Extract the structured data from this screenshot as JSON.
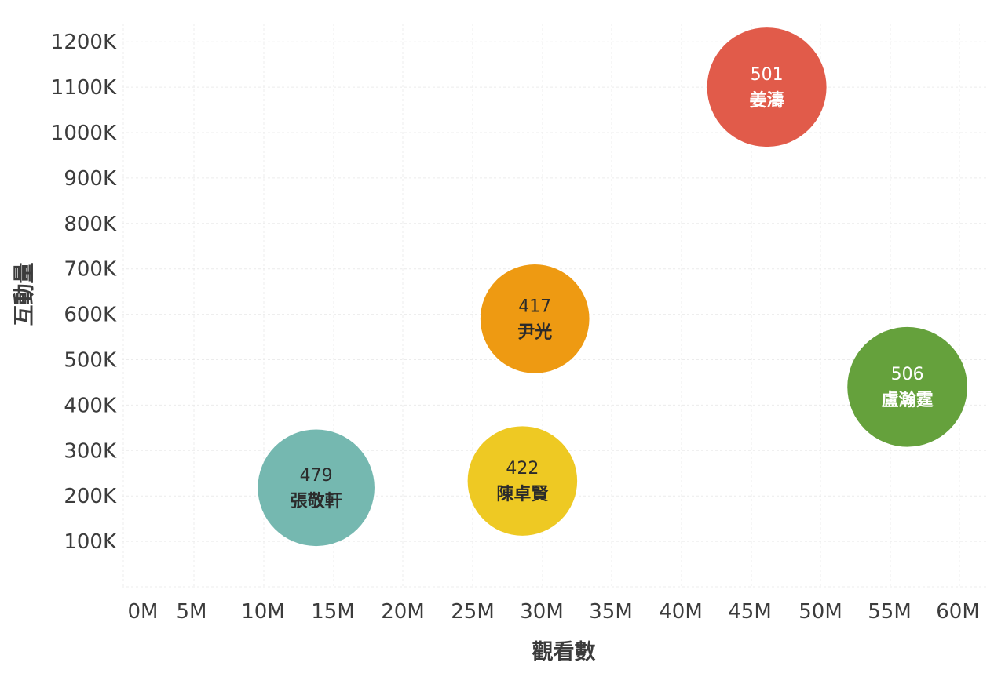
{
  "chart_data": {
    "type": "scatter",
    "title": "",
    "xlabel": "觀看數",
    "ylabel": "互動量",
    "xlim": [
      0,
      62
    ],
    "ylim": [
      0,
      1250
    ],
    "x_unit": "M",
    "y_unit": "K",
    "x_ticks": [
      "0M",
      "5M",
      "10M",
      "15M",
      "20M",
      "25M",
      "30M",
      "35M",
      "40M",
      "45M",
      "50M",
      "55M",
      "60M"
    ],
    "y_ticks": [
      "100K",
      "200K",
      "300K",
      "400K",
      "500K",
      "600K",
      "700K",
      "800K",
      "900K",
      "1000K",
      "1100K",
      "1200K"
    ],
    "grid": true,
    "legend": "none",
    "points": [
      {
        "label": "姜濤",
        "value": "501",
        "x": 46.2,
        "y": 1100,
        "color": "#e15b4a",
        "text_color": "#ffffff"
      },
      {
        "label": "尹光",
        "value": "417",
        "x": 29.5,
        "y": 590,
        "color": "#ee9a12",
        "text_color": "#2b2b2b"
      },
      {
        "label": "盧瀚霆",
        "value": "506",
        "x": 56.3,
        "y": 440,
        "color": "#65a13c",
        "text_color": "#ffffff"
      },
      {
        "label": "張敬軒",
        "value": "479",
        "x": 13.8,
        "y": 218,
        "color": "#75b8b0",
        "text_color": "#2b2b2b"
      },
      {
        "label": "陳卓賢",
        "value": "422",
        "x": 28.6,
        "y": 233,
        "color": "#eec923",
        "text_color": "#2b2b2b"
      }
    ]
  }
}
